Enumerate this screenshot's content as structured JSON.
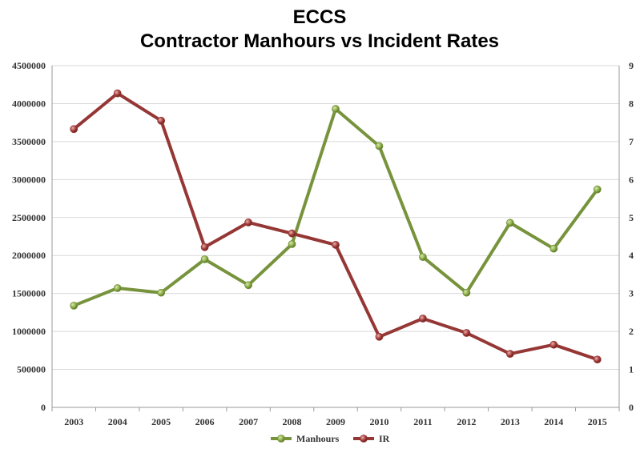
{
  "chart_data": {
    "type": "line",
    "title_lines": [
      "ECCS",
      "Contractor Manhours vs Incident Rates"
    ],
    "x": [
      "2003",
      "2004",
      "2005",
      "2006",
      "2007",
      "2008",
      "2009",
      "2010",
      "2011",
      "2012",
      "2013",
      "2014",
      "2015"
    ],
    "y_left_ticks": [
      "0",
      "500000",
      "1000000",
      "1500000",
      "2000000",
      "2500000",
      "3000000",
      "3500000",
      "4000000",
      "4500000"
    ],
    "y_right_ticks": [
      "0",
      "1",
      "2",
      "3",
      "4",
      "5",
      "6",
      "7",
      "8",
      "9"
    ],
    "ylim_left": [
      0,
      4500000
    ],
    "ylim_right": [
      0,
      9
    ],
    "series": [
      {
        "name": "Manhours",
        "axis": "left",
        "color": "#77933c",
        "values": [
          1340000,
          1570000,
          1510000,
          1950000,
          1610000,
          2150000,
          3930000,
          3440000,
          1980000,
          1510000,
          2430000,
          2090000,
          2870000
        ]
      },
      {
        "name": "IR",
        "axis": "right",
        "color": "#953735",
        "values": [
          7.33,
          8.27,
          7.55,
          4.22,
          4.87,
          4.58,
          4.28,
          1.86,
          2.34,
          1.96,
          1.41,
          1.65,
          1.26
        ]
      }
    ],
    "grid": true,
    "legend_position": "bottom"
  }
}
